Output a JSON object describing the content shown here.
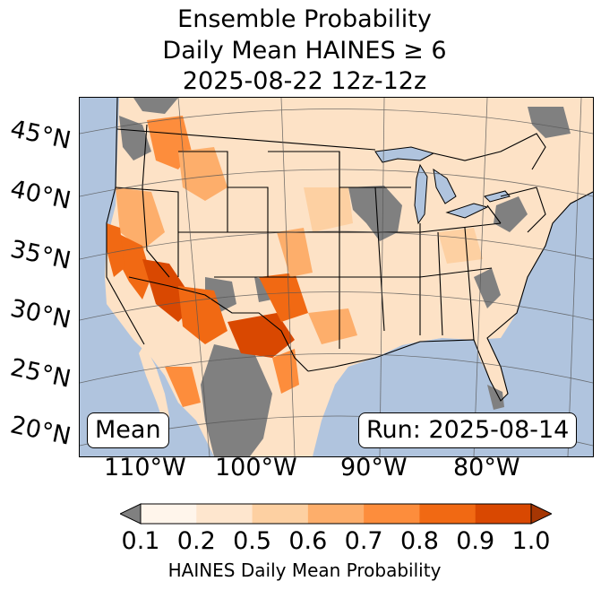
{
  "title": {
    "line1": "Ensemble Probability",
    "line2": "Daily Mean HAINES ≥ 6",
    "line3": "2025-08-22 12z-12z"
  },
  "map": {
    "ocean_color": "#b0c4de",
    "nodata_color": "#808080",
    "lat_labels": [
      "45°N",
      "40°N",
      "35°N",
      "30°N",
      "25°N",
      "20°N"
    ],
    "lon_labels": [
      "110°W",
      "100°W",
      "90°W",
      "80°W"
    ],
    "stat_badge": "Mean",
    "run_badge": "Run: 2025-08-14"
  },
  "colorbar": {
    "ticks": [
      "0.1",
      "0.2",
      "0.5",
      "0.6",
      "0.7",
      "0.8",
      "0.9",
      "1.0"
    ],
    "colors": [
      "#fff5eb",
      "#fee6ce",
      "#fdd0a2",
      "#fdae6b",
      "#fd8d3c",
      "#f16913",
      "#d94801"
    ],
    "under_color": "#808080",
    "over_color": "#a63603",
    "label": "HAINES Daily Mean Probability"
  }
}
